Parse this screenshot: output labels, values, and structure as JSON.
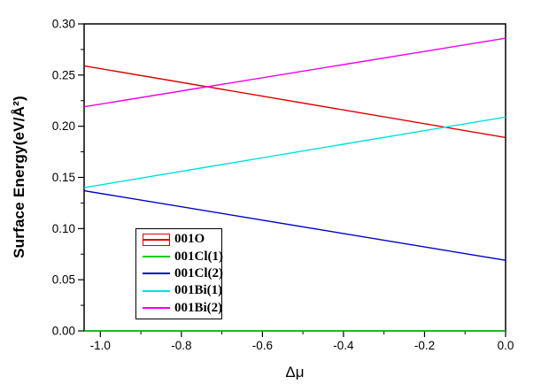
{
  "chart_data": {
    "type": "line",
    "title": "",
    "xlabel": "Δμ",
    "ylabel": "Surface Energy(eV/Å²)",
    "xlim": [
      -1.04,
      0.0
    ],
    "ylim": [
      0.0,
      0.3
    ],
    "x_ticks": [
      -1.0,
      -0.8,
      -0.6,
      -0.4,
      -0.2,
      0.0
    ],
    "x_tick_labels": [
      "-1.0",
      "-0.8",
      "-0.6",
      "-0.4",
      "-0.2",
      "0.0"
    ],
    "x_minor_ticks": [
      -0.9,
      -0.7,
      -0.5,
      -0.3,
      -0.1
    ],
    "y_ticks": [
      0.0,
      0.05,
      0.1,
      0.15,
      0.2,
      0.25,
      0.3
    ],
    "y_tick_labels": [
      "0.00",
      "0.05",
      "0.10",
      "0.15",
      "0.20",
      "0.25",
      "0.30"
    ],
    "y_minor_ticks": [
      0.025,
      0.075,
      0.125,
      0.175,
      0.225,
      0.275
    ],
    "grid": false,
    "frame_color": "#000000",
    "background_color": "#ffffff",
    "legend_position": "lower-left-inside",
    "series": [
      {
        "name": "001O",
        "color": "#e00000",
        "legend_symbol": "box-line",
        "points": [
          [
            -1.04,
            0.259
          ],
          [
            0.0,
            0.189
          ]
        ]
      },
      {
        "name": "001Cl(1)",
        "color": "#00cd00",
        "legend_symbol": "line",
        "points": [
          [
            -1.04,
            0.0
          ],
          [
            0.0,
            0.0
          ]
        ]
      },
      {
        "name": "001Cl(2)",
        "color": "#0000c8",
        "legend_symbol": "line",
        "points": [
          [
            -1.04,
            0.137
          ],
          [
            0.0,
            0.069
          ]
        ]
      },
      {
        "name": "001Bi(1)",
        "color": "#00e0e0",
        "legend_symbol": "line",
        "points": [
          [
            -1.04,
            0.14
          ],
          [
            0.0,
            0.209
          ]
        ]
      },
      {
        "name": "001Bi(2)",
        "color": "#ee00ee",
        "legend_symbol": "line",
        "points": [
          [
            -1.04,
            0.219
          ],
          [
            0.0,
            0.286
          ]
        ]
      }
    ]
  }
}
